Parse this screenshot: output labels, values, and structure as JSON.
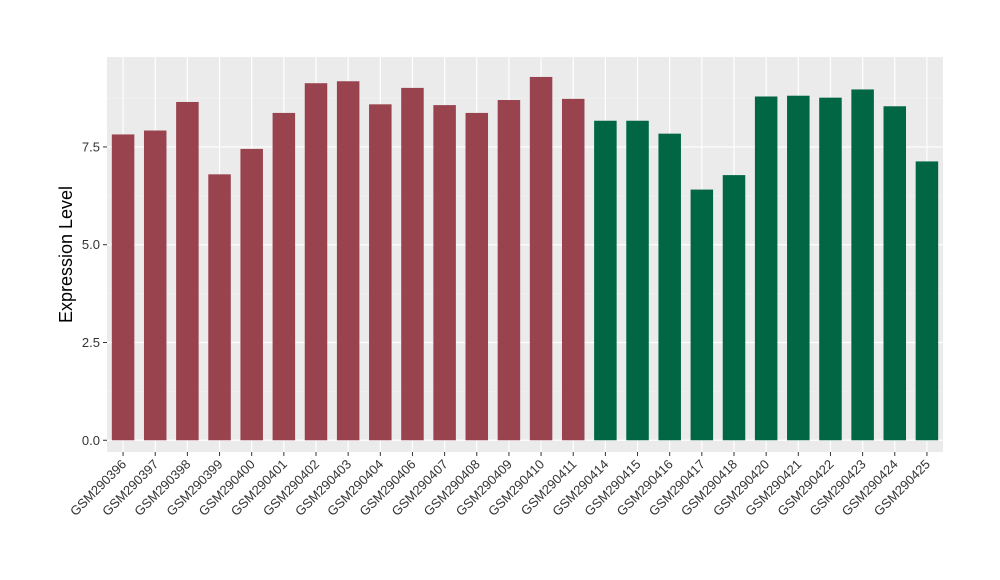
{
  "chart_data": {
    "type": "bar",
    "title": "",
    "xlabel": "",
    "ylabel": "Expression Level",
    "ylim": [
      -0.3,
      9.8
    ],
    "yticks": [
      0.0,
      2.5,
      5.0,
      7.5
    ],
    "ytick_labels": [
      "0.0",
      "2.5",
      "5.0",
      "7.5"
    ],
    "grid": true,
    "legend": "none",
    "colors": {
      "group1": "#99434f",
      "group2": "#006644",
      "panel_bg": "#ebebeb",
      "grid_major": "#ffffff",
      "grid_minor": "#f3f3f3"
    },
    "categories": [
      "GSM290396",
      "GSM290397",
      "GSM290398",
      "GSM290399",
      "GSM290400",
      "GSM290401",
      "GSM290402",
      "GSM290403",
      "GSM290404",
      "GSM290406",
      "GSM290407",
      "GSM290408",
      "GSM290409",
      "GSM290410",
      "GSM290411",
      "GSM290414",
      "GSM290415",
      "GSM290416",
      "GSM290417",
      "GSM290418",
      "GSM290420",
      "GSM290421",
      "GSM290422",
      "GSM290423",
      "GSM290424",
      "GSM290425"
    ],
    "values": [
      7.82,
      7.92,
      8.65,
      6.8,
      7.45,
      8.37,
      9.13,
      9.18,
      8.59,
      9.01,
      8.57,
      8.37,
      8.7,
      9.29,
      8.73,
      8.17,
      8.17,
      7.84,
      6.41,
      6.78,
      8.79,
      8.81,
      8.76,
      8.97,
      8.54,
      7.13
    ],
    "groups": [
      1,
      1,
      1,
      1,
      1,
      1,
      1,
      1,
      1,
      1,
      1,
      1,
      1,
      1,
      1,
      2,
      2,
      2,
      2,
      2,
      2,
      2,
      2,
      2,
      2,
      2
    ]
  }
}
